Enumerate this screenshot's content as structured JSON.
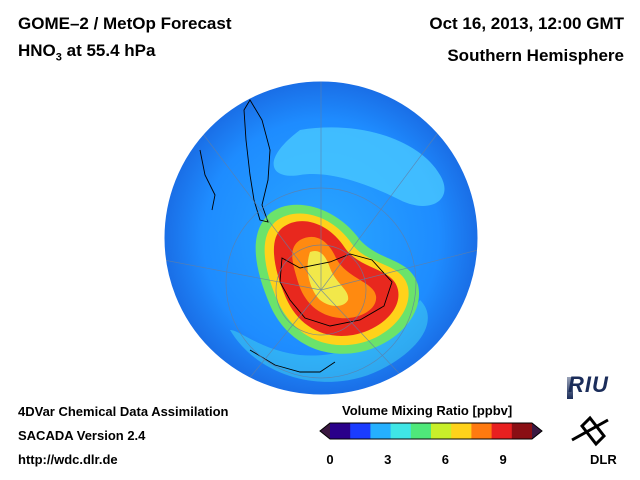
{
  "header": {
    "title": "GOME–2 / MetOp Forecast",
    "species_prefix": "HNO",
    "species_subscript": "3",
    "species_suffix": " at 55.4 hPa",
    "datetime": "Oct 16, 2013, 12:00 GMT",
    "region": "Southern Hemisphere"
  },
  "footer": {
    "line1": "4DVar Chemical Data Assimilation",
    "line2": "SACADA Version 2.4",
    "line3": "http://wdc.dlr.de"
  },
  "colorbar": {
    "title": "Volume Mixing Ratio [ppbv]",
    "min": 0,
    "max": 10.5,
    "ticks": [
      "0",
      "3",
      "6",
      "9"
    ],
    "tick_values": [
      0,
      3,
      6,
      9
    ],
    "colors": [
      "#2a008a",
      "#1a3cff",
      "#25b0ff",
      "#3fe6e6",
      "#4fe87a",
      "#c8ef2a",
      "#ffd21a",
      "#ff7a10",
      "#e82020",
      "#8a0f14"
    ]
  },
  "map": {
    "projection": "orthographic south-polar",
    "background_level": "#2f9cf0",
    "high_level": "#e02a20",
    "ring_level": "#ffd21a"
  },
  "logos": {
    "riu": "RIU",
    "dlr": "DLR"
  }
}
